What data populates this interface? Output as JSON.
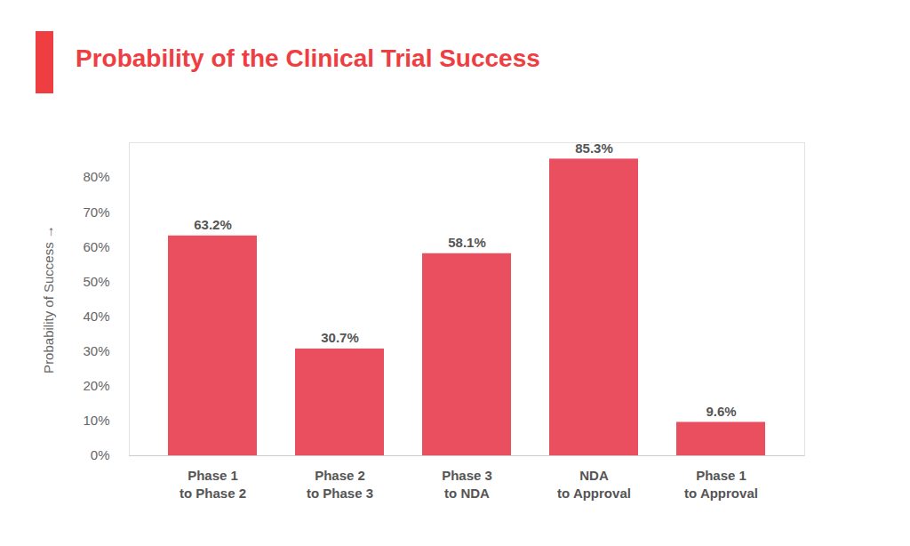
{
  "chart_data": {
    "type": "bar",
    "title": "Probability of the Clinical Trial Success",
    "y_label": "Probability of Success",
    "categories": [
      "Phase 1\nto Phase 2",
      "Phase 2\nto Phase 3",
      "Phase 3\nto NDA",
      "NDA\nto Approval",
      "Phase 1\nto Approval"
    ],
    "values": [
      63.2,
      30.7,
      58.1,
      85.3,
      9.6
    ],
    "value_labels": [
      "63.2%",
      "30.7%",
      "58.1%",
      "85.3%",
      "9.6%"
    ],
    "color": "#ea4f5f",
    "ylim": [
      0,
      90
    ],
    "yticks": [
      {
        "value": 0,
        "label": "0%"
      },
      {
        "value": 10,
        "label": "10%"
      },
      {
        "value": 20,
        "label": "20%"
      },
      {
        "value": 30,
        "label": "30%"
      },
      {
        "value": 40,
        "label": "40%"
      },
      {
        "value": 50,
        "label": "50%"
      },
      {
        "value": 60,
        "label": "60%"
      },
      {
        "value": 70,
        "label": "70%"
      },
      {
        "value": 80,
        "label": "80%"
      }
    ],
    "grid": false,
    "data_labels": true
  }
}
